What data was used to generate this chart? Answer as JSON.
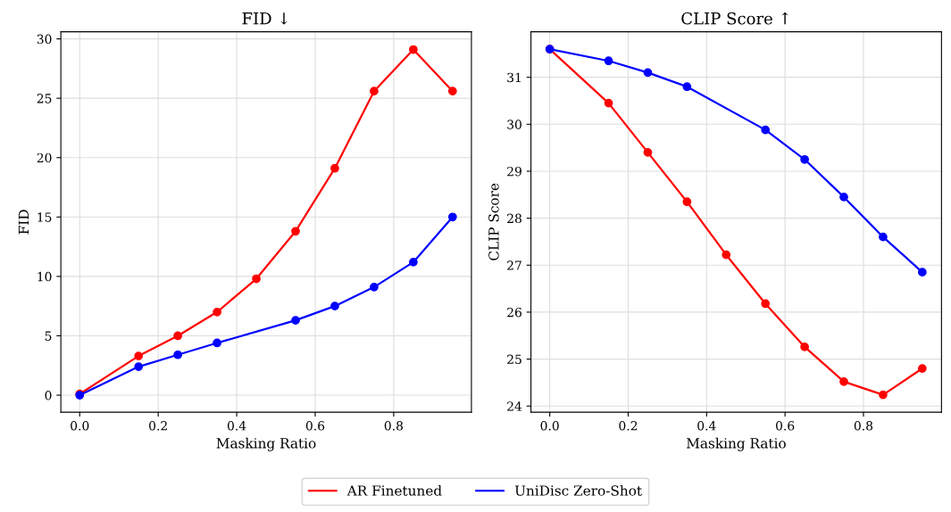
{
  "chart_data": [
    {
      "type": "line",
      "title": "FID ↓",
      "xlabel": "Masking Ratio",
      "ylabel": "FID",
      "xlim": [
        -0.048,
        0.998
      ],
      "ylim": [
        -1.43,
        30.6
      ],
      "xticks": [
        {
          "value": 0,
          "label": "0.0"
        },
        0.2,
        0.4,
        0.6,
        0.8
      ],
      "yticks": [
        0,
        5,
        10,
        15,
        20,
        25,
        30
      ],
      "grid": true,
      "marker": "circle",
      "legend": "bottom",
      "series": [
        {
          "name": "AR Finetuned",
          "color": "#ff0000",
          "x": [
            0,
            0.15,
            0.25,
            0.35,
            0.45,
            0.55,
            0.65,
            0.75,
            0.85,
            0.95
          ],
          "values": [
            0.1,
            3.3,
            5.0,
            7.0,
            9.8,
            13.8,
            19.1,
            25.6,
            29.1,
            25.6
          ]
        },
        {
          "name": "UniDisc Zero-Shot",
          "color": "#0000ff",
          "x": [
            0,
            0.15,
            0.25,
            0.35,
            0.55,
            0.65,
            0.75,
            0.85,
            0.95
          ],
          "values": [
            0.0,
            2.4,
            3.4,
            4.4,
            6.3,
            7.5,
            9.1,
            11.2,
            15.0
          ]
        }
      ]
    },
    {
      "type": "line",
      "title": "CLIP Score ↑",
      "xlabel": "Masking Ratio",
      "ylabel": "CLIP Score",
      "xlim": [
        -0.048,
        0.999
      ],
      "ylim": [
        23.87,
        31.97
      ],
      "xticks": [
        {
          "value": 0,
          "label": "0.0"
        },
        0.2,
        0.4,
        0.6,
        0.8
      ],
      "yticks": [
        24,
        25,
        26,
        27,
        28,
        29,
        30,
        31
      ],
      "grid": true,
      "marker": "circle",
      "series": [
        {
          "color": "#ff0000",
          "x": [
            0,
            0.15,
            0.25,
            0.35,
            0.45,
            0.55,
            0.65,
            0.75,
            0.85,
            0.95
          ],
          "values": [
            31.6,
            30.45,
            29.4,
            28.35,
            27.22,
            26.18,
            25.26,
            24.52,
            24.24,
            24.8
          ]
        },
        {
          "color": "#0000ff",
          "x": [
            0,
            0.15,
            0.25,
            0.35,
            0.55,
            0.65,
            0.75,
            0.85,
            0.95
          ],
          "values": [
            31.6,
            31.35,
            31.1,
            30.8,
            29.88,
            29.25,
            28.45,
            27.6,
            26.85
          ]
        }
      ]
    }
  ]
}
